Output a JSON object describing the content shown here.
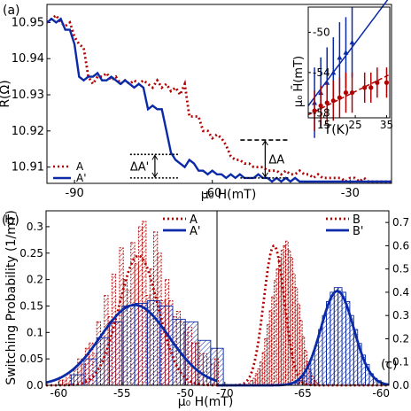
{
  "panels": {
    "a_label": "(a)",
    "b_label": "(b)",
    "c_label": "(c)"
  },
  "chart_data": [
    {
      "id": "a",
      "type": "line",
      "xlabel": "μ₀ H(mT)",
      "ylabel": "R(Ω)",
      "xlim": [
        -96,
        -21
      ],
      "ylim": [
        10.9055,
        10.955
      ],
      "xticks": [
        -90,
        -60,
        -30
      ],
      "yticks": [
        10.91,
        10.92,
        10.93,
        10.94,
        10.95
      ],
      "ytick_labels": [
        "10.91",
        "10.92",
        "10.93",
        "10.94",
        "10.95"
      ],
      "legend": "bottom-left",
      "colors": {
        "A": "#b20000",
        "A'": "#0a2aa8"
      },
      "series": [
        {
          "name": "A",
          "style": "dotted",
          "x": [
            -96,
            -95,
            -94,
            -93,
            -92,
            -91,
            -90,
            -89,
            -88,
            -87,
            -86,
            -85,
            -84,
            -83,
            -82,
            -81,
            -80,
            -79,
            -78,
            -77,
            -76,
            -75,
            -74,
            -73,
            -72,
            -71,
            -70,
            -69,
            -68,
            -67,
            -66,
            -65,
            -64,
            -63,
            -62,
            -61,
            -60,
            -59,
            -58,
            -57,
            -56,
            -55,
            -54,
            -53,
            -52,
            -51,
            -50,
            -49,
            -48,
            -47,
            -46,
            -45,
            -44,
            -43,
            -42,
            -41,
            -40,
            -39,
            -38,
            -37,
            -36,
            -35,
            -34,
            -33,
            -32,
            -31,
            -30,
            -29,
            -28,
            -27,
            -26,
            -25,
            -24,
            -23,
            -22,
            -21
          ],
          "y": [
            10.95,
            10.951,
            10.952,
            10.95,
            10.949,
            10.95,
            10.946,
            10.944,
            10.943,
            10.935,
            10.933,
            10.935,
            10.935,
            10.936,
            10.934,
            10.935,
            10.933,
            10.934,
            10.933,
            10.934,
            10.933,
            10.934,
            10.933,
            10.932,
            10.934,
            10.932,
            10.933,
            10.931,
            10.932,
            10.93,
            10.933,
            10.924,
            10.924,
            10.924,
            10.92,
            10.92,
            10.918,
            10.919,
            10.918,
            10.916,
            10.913,
            10.912,
            10.912,
            10.911,
            10.911,
            10.91,
            10.91,
            10.91,
            10.909,
            10.909,
            10.909,
            10.908,
            10.909,
            10.908,
            10.908,
            10.909,
            10.908,
            10.908,
            10.907,
            10.908,
            10.907,
            10.907,
            10.907,
            10.907,
            10.907,
            10.906,
            10.907,
            10.907,
            10.906,
            10.907,
            10.906,
            10.906,
            10.906,
            10.906,
            10.906,
            10.906
          ]
        },
        {
          "name": "A'",
          "style": "solid",
          "x": [
            -96,
            -95,
            -94,
            -93,
            -92,
            -91,
            -90,
            -89,
            -88,
            -87,
            -86,
            -85,
            -84,
            -83,
            -82,
            -81,
            -80,
            -79,
            -78,
            -77,
            -76,
            -75,
            -74,
            -73,
            -72,
            -71,
            -70,
            -69,
            -68,
            -67,
            -66,
            -65,
            -64,
            -63,
            -62,
            -61,
            -60,
            -59,
            -58,
            -57,
            -56,
            -55,
            -54,
            -53,
            -52,
            -51,
            -50,
            -49,
            -48,
            -47,
            -46,
            -45,
            -44,
            -43,
            -42,
            -41,
            -40,
            -39,
            -38,
            -37,
            -36,
            -35,
            -34,
            -33,
            -32,
            -31,
            -30,
            -29,
            -28,
            -27,
            -26,
            -25,
            -24,
            -23,
            -22,
            -21
          ],
          "y": [
            10.95,
            10.951,
            10.95,
            10.951,
            10.948,
            10.948,
            10.944,
            10.935,
            10.934,
            10.935,
            10.935,
            10.936,
            10.934,
            10.934,
            10.935,
            10.934,
            10.933,
            10.934,
            10.933,
            10.932,
            10.933,
            10.932,
            10.926,
            10.927,
            10.926,
            10.926,
            10.92,
            10.914,
            10.912,
            10.911,
            10.91,
            10.912,
            10.911,
            10.909,
            10.909,
            10.908,
            10.909,
            10.908,
            10.908,
            10.907,
            10.908,
            10.907,
            10.908,
            10.907,
            10.907,
            10.907,
            10.908,
            10.907,
            10.907,
            10.906,
            10.907,
            10.906,
            10.907,
            10.906,
            10.907,
            10.906,
            10.906,
            10.906,
            10.906,
            10.906,
            10.906,
            10.906,
            10.906,
            10.906,
            10.906,
            10.906,
            10.906,
            10.906,
            10.906,
            10.906,
            10.906,
            10.906,
            10.906,
            10.906,
            10.906,
            10.906
          ]
        }
      ],
      "annotations": [
        {
          "text": "ΔA'",
          "x": -72.5,
          "y1": 10.9135,
          "y2": 10.907
        },
        {
          "text": "ΔA",
          "x": -48.5,
          "y1": 10.9175,
          "y2": 10.907
        }
      ]
    },
    {
      "id": "a_inset",
      "type": "scatter",
      "xlabel": "T(K)",
      "ylabel": "μ₀ H̄(mT)",
      "xlim": [
        10,
        36
      ],
      "ylim": [
        -58.5,
        -47.5
      ],
      "xticks": [
        15,
        25,
        35
      ],
      "yticks": [
        -58,
        -54,
        -50
      ],
      "series": [
        {
          "name": "blue",
          "color": "#0a2aa8",
          "marker": "triangle",
          "x": [
            12,
            14,
            16,
            18,
            20,
            22,
            24
          ],
          "y": [
            -57.0,
            -56.0,
            -55.0,
            -54.0,
            -52.5,
            -52.0,
            -51.0
          ],
          "err": [
            3.5,
            3.5,
            3.5,
            3.5,
            3.5,
            3.5,
            3.5
          ],
          "fit": {
            "x": [
              10,
              36
            ],
            "y": [
              -57.3,
              -46.5
            ],
            "style": "solid"
          }
        },
        {
          "name": "red",
          "color": "#b20000",
          "marker": "circle",
          "x": [
            12,
            14,
            16,
            18,
            20,
            22,
            24,
            28,
            30,
            32,
            35
          ],
          "y": [
            -57.8,
            -57.3,
            -57.0,
            -56.8,
            -56.5,
            -56.0,
            -56.0,
            -55.5,
            -55.5,
            -55.0,
            -55.0
          ],
          "err": [
            2.0,
            2.0,
            2.0,
            2.0,
            2.0,
            2.0,
            2.0,
            1.5,
            1.5,
            1.5,
            1.5
          ],
          "fit": {
            "x": [
              10,
              36
            ],
            "y": [
              -58.2,
              -54.2
            ],
            "style": "dashed"
          }
        }
      ]
    },
    {
      "id": "b",
      "type": "bar",
      "xlabel": "μ₀ H(mT)",
      "ylabel": "Switching Probability (1/mT)",
      "xlim": [
        -61,
        -47.5
      ],
      "ylim": [
        0,
        0.33
      ],
      "xticks": [
        -60,
        -55,
        -50
      ],
      "yticks": [
        0.0,
        0.05,
        0.1,
        0.15,
        0.2,
        0.25,
        0.3
      ],
      "ytick_labels": [
        "0.0",
        "0.05",
        "0.1",
        "0.15",
        "0.2",
        "0.25",
        "0.3"
      ],
      "legend": "top-right",
      "series": [
        {
          "name": "A",
          "color": "#b20000",
          "bin_width": 0.3,
          "bin_edges_start": -60.0,
          "values": [
            0.01,
            0.01,
            0.02,
            0.02,
            0.03,
            0.05,
            0.04,
            0.07,
            0.08,
            0.06,
            0.12,
            0.09,
            0.17,
            0.13,
            0.21,
            0.12,
            0.26,
            0.2,
            0.18,
            0.27,
            0.23,
            0.3,
            0.31,
            0.17,
            0.22,
            0.29,
            0.25,
            0.16,
            0.2,
            0.16,
            0.13,
            0.14,
            0.12,
            0.1,
            0.11,
            0.08,
            0.08,
            0.06,
            0.06,
            0.05,
            0.04,
            0.05,
            0.03,
            0.03,
            0.02,
            0.02,
            0.01,
            0.01,
            0.01,
            0.01
          ],
          "curve": {
            "type": "gaussian",
            "mean": -53.7,
            "sigma": 1.55,
            "peak": 0.245,
            "style": "dotted"
          }
        },
        {
          "name": "A'",
          "color": "#0a2aa8",
          "bin_width": 1.0,
          "bin_edges_start": -60.0,
          "values": [
            0.0,
            0.02,
            0.05,
            0.09,
            0.12,
            0.15,
            0.155,
            0.16,
            0.15,
            0.125,
            0.12,
            0.085,
            0.07,
            0.05
          ],
          "curve": {
            "type": "gaussian",
            "mean": -54.0,
            "sigma": 2.7,
            "peak": 0.152,
            "style": "solid"
          }
        }
      ]
    },
    {
      "id": "c",
      "type": "bar",
      "xlabel": "",
      "ylabel": "",
      "xlim": [
        -70.5,
        -59.5
      ],
      "ylim": [
        0,
        0.75
      ],
      "xticks": [
        -70,
        -65,
        -60
      ],
      "yticks": [
        0.0,
        0.1,
        0.2,
        0.3,
        0.4,
        0.5,
        0.6,
        0.7
      ],
      "ytick_labels": [
        "0.0",
        "0.1",
        "0.2",
        "0.3",
        "0.4",
        "0.5",
        "0.6",
        "0.7"
      ],
      "legend": "top-right",
      "series": [
        {
          "name": "B",
          "color": "#b20000",
          "bin_width": 0.15,
          "bin_edges_start": -68.5,
          "values": [
            0.01,
            0.02,
            0.03,
            0.05,
            0.07,
            0.1,
            0.14,
            0.2,
            0.26,
            0.32,
            0.38,
            0.45,
            0.5,
            0.55,
            0.58,
            0.6,
            0.62,
            0.58,
            0.55,
            0.48,
            0.42,
            0.35,
            0.28,
            0.21,
            0.15,
            0.1,
            0.06,
            0.04,
            0.02,
            0.01
          ],
          "curve": {
            "type": "gaussian",
            "mean": -66.85,
            "sigma": 0.66,
            "peak": 0.6,
            "style": "dotted"
          }
        },
        {
          "name": "B'",
          "color": "#0a2aa8",
          "bin_width": 0.25,
          "bin_edges_start": -65.5,
          "values": [
            0.01,
            0.02,
            0.04,
            0.07,
            0.11,
            0.17,
            0.24,
            0.3,
            0.36,
            0.4,
            0.42,
            0.42,
            0.4,
            0.36,
            0.3,
            0.24,
            0.18,
            0.13,
            0.09,
            0.05,
            0.03,
            0.02
          ],
          "curve": {
            "type": "gaussian",
            "mean": -62.8,
            "sigma": 1.05,
            "peak": 0.405,
            "style": "solid"
          }
        }
      ]
    }
  ]
}
